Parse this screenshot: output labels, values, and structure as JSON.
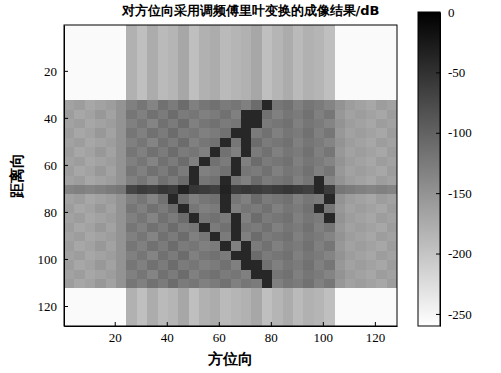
{
  "chart_data": {
    "type": "heatmap",
    "title": "对方位向采用调频傅里叶变换的成像结果/dB",
    "x_label": "方位向",
    "y_label": "距离向",
    "xlim": [
      0.5,
      128.5
    ],
    "ylim": [
      128.5,
      0.5
    ],
    "xticks": [
      20,
      40,
      60,
      80,
      100,
      120
    ],
    "yticks": [
      20,
      40,
      60,
      80,
      100,
      120
    ],
    "x_edges": [
      0.5,
      4.5,
      8.5,
      12.5,
      16.5,
      20.5,
      24.5,
      28.5,
      32.5,
      36.5,
      40.5,
      44.5,
      48.5,
      52.5,
      56.5,
      60.5,
      64.5,
      68.5,
      72.5,
      76.5,
      80.5,
      84.5,
      88.5,
      92.5,
      96.5,
      100.5,
      104.5,
      108.5,
      112.5,
      116.5,
      120.5,
      124.5,
      128.5
    ],
    "y_edges": [
      0.5,
      4.5,
      8.5,
      12.5,
      16.5,
      20.5,
      24.5,
      28.5,
      32.5,
      36.5,
      40.5,
      44.5,
      48.5,
      52.5,
      56.5,
      60.5,
      64.5,
      68.5,
      72.5,
      76.5,
      80.5,
      84.5,
      88.5,
      92.5,
      96.5,
      100.5,
      104.5,
      108.5,
      112.5,
      116.5,
      120.5,
      124.5,
      128.5
    ],
    "z": [
      [
        -255,
        -255,
        -255,
        -255,
        -255,
        -255,
        -180,
        -195,
        -175,
        -190,
        -185,
        -170,
        -195,
        -180,
        -175,
        -190,
        -185,
        -180,
        -170,
        -195,
        -185,
        -175,
        -190,
        -180,
        -185,
        -195,
        -255,
        -255,
        -255,
        -255,
        -255,
        -255
      ],
      [
        -255,
        -255,
        -255,
        -255,
        -255,
        -255,
        -180,
        -195,
        -175,
        -190,
        -185,
        -170,
        -195,
        -180,
        -175,
        -190,
        -185,
        -180,
        -170,
        -195,
        -185,
        -175,
        -190,
        -180,
        -185,
        -195,
        -255,
        -255,
        -255,
        -255,
        -255,
        -255
      ],
      [
        -255,
        -255,
        -255,
        -255,
        -255,
        -255,
        -180,
        -195,
        -175,
        -190,
        -185,
        -170,
        -195,
        -180,
        -175,
        -190,
        -185,
        -180,
        -170,
        -195,
        -185,
        -175,
        -190,
        -180,
        -185,
        -195,
        -255,
        -255,
        -255,
        -255,
        -255,
        -255
      ],
      [
        -255,
        -255,
        -255,
        -255,
        -255,
        -255,
        -180,
        -195,
        -175,
        -190,
        -185,
        -170,
        -195,
        -180,
        -175,
        -190,
        -185,
        -180,
        -170,
        -195,
        -185,
        -175,
        -190,
        -180,
        -185,
        -195,
        -255,
        -255,
        -255,
        -255,
        -255,
        -255
      ],
      [
        -255,
        -255,
        -255,
        -255,
        -255,
        -255,
        -180,
        -195,
        -175,
        -190,
        -185,
        -170,
        -195,
        -180,
        -175,
        -190,
        -185,
        -180,
        -170,
        -195,
        -185,
        -175,
        -190,
        -180,
        -185,
        -195,
        -255,
        -255,
        -255,
        -255,
        -255,
        -255
      ],
      [
        -255,
        -255,
        -255,
        -255,
        -255,
        -255,
        -180,
        -195,
        -175,
        -190,
        -185,
        -170,
        -195,
        -180,
        -175,
        -190,
        -185,
        -180,
        -170,
        -195,
        -185,
        -175,
        -190,
        -180,
        -185,
        -195,
        -255,
        -255,
        -255,
        -255,
        -255,
        -255
      ],
      [
        -255,
        -255,
        -255,
        -255,
        -255,
        -255,
        -180,
        -195,
        -175,
        -190,
        -185,
        -170,
        -195,
        -180,
        -175,
        -190,
        -185,
        -180,
        -170,
        -195,
        -185,
        -175,
        -190,
        -180,
        -185,
        -195,
        -255,
        -255,
        -255,
        -255,
        -255,
        -255
      ],
      [
        -255,
        -255,
        -255,
        -255,
        -255,
        -255,
        -180,
        -195,
        -175,
        -190,
        -185,
        -170,
        -195,
        -180,
        -175,
        -190,
        -185,
        -180,
        -170,
        -195,
        -185,
        -175,
        -190,
        -180,
        -185,
        -195,
        -255,
        -255,
        -255,
        -255,
        -255,
        -255
      ],
      [
        -165,
        -160,
        -170,
        -165,
        -160,
        -150,
        -130,
        -120,
        -135,
        -115,
        -125,
        -110,
        -130,
        -120,
        -115,
        -125,
        -120,
        -130,
        -110,
        -40,
        -120,
        -115,
        -130,
        -120,
        -125,
        -135,
        -150,
        -160,
        -165,
        -170,
        -160,
        -165
      ],
      [
        -160,
        -170,
        -165,
        -155,
        -165,
        -150,
        -120,
        -130,
        -115,
        -125,
        -110,
        -125,
        -120,
        -130,
        -125,
        -115,
        -130,
        -40,
        -40,
        -115,
        -130,
        -120,
        -125,
        -115,
        -130,
        -120,
        -155,
        -165,
        -160,
        -165,
        -170,
        -160
      ],
      [
        -165,
        -160,
        -170,
        -165,
        -160,
        -150,
        -130,
        -120,
        -135,
        -115,
        -125,
        -110,
        -130,
        -120,
        -115,
        -125,
        -120,
        -40,
        -40,
        -125,
        -120,
        -115,
        -130,
        -120,
        -125,
        -135,
        -150,
        -160,
        -165,
        -170,
        -160,
        -165
      ],
      [
        -160,
        -170,
        -165,
        -155,
        -165,
        -150,
        -120,
        -130,
        -115,
        -125,
        -110,
        -125,
        -120,
        -130,
        -125,
        -115,
        -40,
        -40,
        -125,
        -115,
        -130,
        -120,
        -125,
        -115,
        -130,
        -120,
        -155,
        -165,
        -160,
        -165,
        -170,
        -160
      ],
      [
        -165,
        -160,
        -170,
        -165,
        -160,
        -150,
        -130,
        -120,
        -135,
        -115,
        -125,
        -110,
        -130,
        -120,
        -115,
        -40,
        -120,
        -40,
        -110,
        -125,
        -120,
        -115,
        -130,
        -120,
        -125,
        -135,
        -150,
        -160,
        -165,
        -170,
        -160,
        -165
      ],
      [
        -160,
        -170,
        -165,
        -155,
        -165,
        -150,
        -120,
        -130,
        -115,
        -125,
        -110,
        -125,
        -120,
        -130,
        -40,
        -115,
        -130,
        -40,
        -125,
        -115,
        -130,
        -120,
        -125,
        -115,
        -130,
        -120,
        -155,
        -165,
        -160,
        -165,
        -170,
        -160
      ],
      [
        -165,
        -160,
        -170,
        -165,
        -160,
        -150,
        -130,
        -120,
        -135,
        -115,
        -125,
        -110,
        -130,
        -40,
        -115,
        -125,
        -40,
        -130,
        -110,
        -125,
        -120,
        -115,
        -130,
        -120,
        -125,
        -135,
        -150,
        -160,
        -165,
        -170,
        -160,
        -165
      ],
      [
        -160,
        -170,
        -165,
        -155,
        -165,
        -150,
        -120,
        -130,
        -115,
        -125,
        -110,
        -125,
        -40,
        -130,
        -125,
        -115,
        -40,
        -120,
        -125,
        -115,
        -130,
        -120,
        -125,
        -115,
        -130,
        -120,
        -155,
        -165,
        -160,
        -165,
        -170,
        -160
      ],
      [
        -165,
        -160,
        -170,
        -165,
        -160,
        -150,
        -130,
        -120,
        -135,
        -115,
        -125,
        -110,
        -40,
        -120,
        -115,
        -40,
        -120,
        -130,
        -110,
        -125,
        -120,
        -115,
        -130,
        -120,
        -40,
        -135,
        -150,
        -160,
        -165,
        -170,
        -160,
        -165
      ],
      [
        -135,
        -130,
        -135,
        -130,
        -125,
        -120,
        -70,
        -60,
        -65,
        -55,
        -60,
        -35,
        -55,
        -60,
        -65,
        -35,
        -60,
        -55,
        -60,
        -65,
        -60,
        -55,
        -60,
        -65,
        -40,
        -60,
        -120,
        -125,
        -130,
        -135,
        -130,
        -135
      ],
      [
        -165,
        -160,
        -170,
        -165,
        -160,
        -150,
        -130,
        -120,
        -135,
        -115,
        -40,
        -110,
        -130,
        -120,
        -115,
        -40,
        -120,
        -130,
        -110,
        -125,
        -120,
        -115,
        -130,
        -120,
        -125,
        -40,
        -150,
        -160,
        -165,
        -170,
        -160,
        -165
      ],
      [
        -160,
        -170,
        -165,
        -155,
        -165,
        -150,
        -120,
        -130,
        -115,
        -125,
        -110,
        -40,
        -120,
        -130,
        -125,
        -40,
        -130,
        -120,
        -125,
        -115,
        -130,
        -120,
        -125,
        -115,
        -40,
        -120,
        -155,
        -165,
        -160,
        -165,
        -170,
        -160
      ],
      [
        -165,
        -160,
        -170,
        -165,
        -160,
        -150,
        -130,
        -120,
        -135,
        -115,
        -125,
        -110,
        -40,
        -120,
        -115,
        -125,
        -40,
        -130,
        -110,
        -125,
        -120,
        -115,
        -130,
        -120,
        -125,
        -40,
        -150,
        -160,
        -165,
        -170,
        -160,
        -165
      ],
      [
        -160,
        -170,
        -165,
        -155,
        -165,
        -150,
        -120,
        -130,
        -115,
        -125,
        -110,
        -125,
        -120,
        -40,
        -125,
        -115,
        -40,
        -120,
        -125,
        -115,
        -130,
        -120,
        -125,
        -115,
        -130,
        -120,
        -155,
        -165,
        -160,
        -165,
        -170,
        -160
      ],
      [
        -165,
        -160,
        -170,
        -165,
        -160,
        -150,
        -130,
        -120,
        -135,
        -115,
        -125,
        -110,
        -130,
        -120,
        -40,
        -125,
        -40,
        -130,
        -110,
        -125,
        -120,
        -115,
        -130,
        -120,
        -125,
        -135,
        -150,
        -160,
        -165,
        -170,
        -160,
        -165
      ],
      [
        -160,
        -170,
        -165,
        -155,
        -165,
        -150,
        -120,
        -130,
        -115,
        -125,
        -110,
        -125,
        -120,
        -130,
        -125,
        -40,
        -130,
        -40,
        -125,
        -115,
        -130,
        -120,
        -125,
        -115,
        -130,
        -120,
        -155,
        -165,
        -160,
        -165,
        -170,
        -160
      ],
      [
        -165,
        -160,
        -170,
        -165,
        -160,
        -150,
        -130,
        -120,
        -135,
        -115,
        -125,
        -110,
        -130,
        -120,
        -115,
        -125,
        -40,
        -40,
        -110,
        -125,
        -120,
        -115,
        -130,
        -120,
        -125,
        -135,
        -150,
        -160,
        -165,
        -170,
        -160,
        -165
      ],
      [
        -160,
        -170,
        -165,
        -155,
        -165,
        -150,
        -120,
        -130,
        -115,
        -125,
        -110,
        -125,
        -120,
        -130,
        -125,
        -115,
        -130,
        -40,
        -40,
        -115,
        -130,
        -120,
        -125,
        -115,
        -130,
        -120,
        -155,
        -165,
        -160,
        -165,
        -170,
        -160
      ],
      [
        -165,
        -160,
        -170,
        -165,
        -160,
        -150,
        -130,
        -120,
        -135,
        -115,
        -125,
        -110,
        -130,
        -120,
        -115,
        -125,
        -120,
        -130,
        -40,
        -40,
        -120,
        -115,
        -130,
        -120,
        -125,
        -135,
        -150,
        -160,
        -165,
        -170,
        -160,
        -165
      ],
      [
        -160,
        -170,
        -165,
        -155,
        -165,
        -150,
        -120,
        -130,
        -115,
        -125,
        -110,
        -125,
        -120,
        -130,
        -125,
        -115,
        -130,
        -120,
        -125,
        -40,
        -130,
        -120,
        -125,
        -115,
        -130,
        -120,
        -155,
        -165,
        -160,
        -165,
        -170,
        -160
      ],
      [
        -255,
        -255,
        -255,
        -255,
        -255,
        -255,
        -180,
        -195,
        -175,
        -190,
        -185,
        -170,
        -195,
        -180,
        -175,
        -190,
        -185,
        -180,
        -170,
        -195,
        -185,
        -175,
        -190,
        -180,
        -185,
        -195,
        -255,
        -255,
        -255,
        -255,
        -255,
        -255
      ],
      [
        -255,
        -255,
        -255,
        -255,
        -255,
        -255,
        -180,
        -195,
        -175,
        -190,
        -185,
        -170,
        -195,
        -180,
        -175,
        -190,
        -185,
        -180,
        -170,
        -195,
        -185,
        -175,
        -190,
        -180,
        -185,
        -195,
        -255,
        -255,
        -255,
        -255,
        -255,
        -255
      ],
      [
        -255,
        -255,
        -255,
        -255,
        -255,
        -255,
        -180,
        -195,
        -175,
        -190,
        -185,
        -170,
        -195,
        -180,
        -175,
        -190,
        -185,
        -180,
        -170,
        -195,
        -185,
        -175,
        -190,
        -180,
        -185,
        -195,
        -255,
        -255,
        -255,
        -255,
        -255,
        -255
      ],
      [
        -255,
        -255,
        -255,
        -255,
        -255,
        -255,
        -180,
        -195,
        -175,
        -190,
        -185,
        -170,
        -195,
        -180,
        -175,
        -190,
        -185,
        -180,
        -170,
        -195,
        -185,
        -175,
        -190,
        -180,
        -185,
        -195,
        -255,
        -255,
        -255,
        -255,
        -255,
        -255
      ]
    ],
    "colorbar": {
      "range": [
        -260,
        0
      ],
      "ticks": [
        0,
        -50,
        -100,
        -150,
        -200,
        -250
      ]
    }
  }
}
